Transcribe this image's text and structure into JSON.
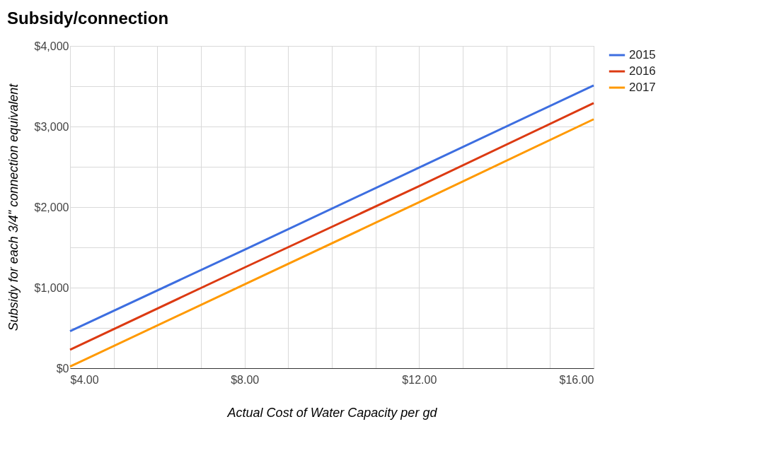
{
  "chart_data": {
    "type": "line",
    "title": "Subsidy/connection",
    "xlabel": "Actual Cost of Water Capacity per gd",
    "ylabel": "Subsidy for each 3/4\" connection equivalent",
    "x": [
      4,
      8,
      12,
      16
    ],
    "series": [
      {
        "name": "2015",
        "color": "#3d6ee0",
        "values": [
          460,
          1470,
          2490,
          3510
        ]
      },
      {
        "name": "2016",
        "color": "#dc3a12",
        "values": [
          230,
          1250,
          2260,
          3290
        ]
      },
      {
        "name": "2017",
        "color": "#ff9900",
        "values": [
          20,
          1040,
          2060,
          3090
        ]
      }
    ],
    "xlim": [
      4,
      16
    ],
    "xticks": [
      {
        "value": 4,
        "label": "$4.00"
      },
      {
        "value": 5,
        "label": null
      },
      {
        "value": 6,
        "label": null
      },
      {
        "value": 7,
        "label": null
      },
      {
        "value": 8,
        "label": "$8.00"
      },
      {
        "value": 9,
        "label": null
      },
      {
        "value": 10,
        "label": null
      },
      {
        "value": 11,
        "label": null
      },
      {
        "value": 12,
        "label": "$12.00"
      },
      {
        "value": 13,
        "label": null
      },
      {
        "value": 14,
        "label": null
      },
      {
        "value": 15,
        "label": null
      },
      {
        "value": 16,
        "label": "$16.00"
      }
    ],
    "ylim": [
      0,
      4000
    ],
    "yticks": [
      {
        "value": 0,
        "label": "$0"
      },
      {
        "value": 500,
        "label": null
      },
      {
        "value": 1000,
        "label": "$1,000"
      },
      {
        "value": 1500,
        "label": null
      },
      {
        "value": 2000,
        "label": "$2,000"
      },
      {
        "value": 2500,
        "label": null
      },
      {
        "value": 3000,
        "label": "$3,000"
      },
      {
        "value": 3500,
        "label": null
      },
      {
        "value": 4000,
        "label": "$4,000"
      }
    ],
    "grid": true,
    "legend": "top right"
  }
}
